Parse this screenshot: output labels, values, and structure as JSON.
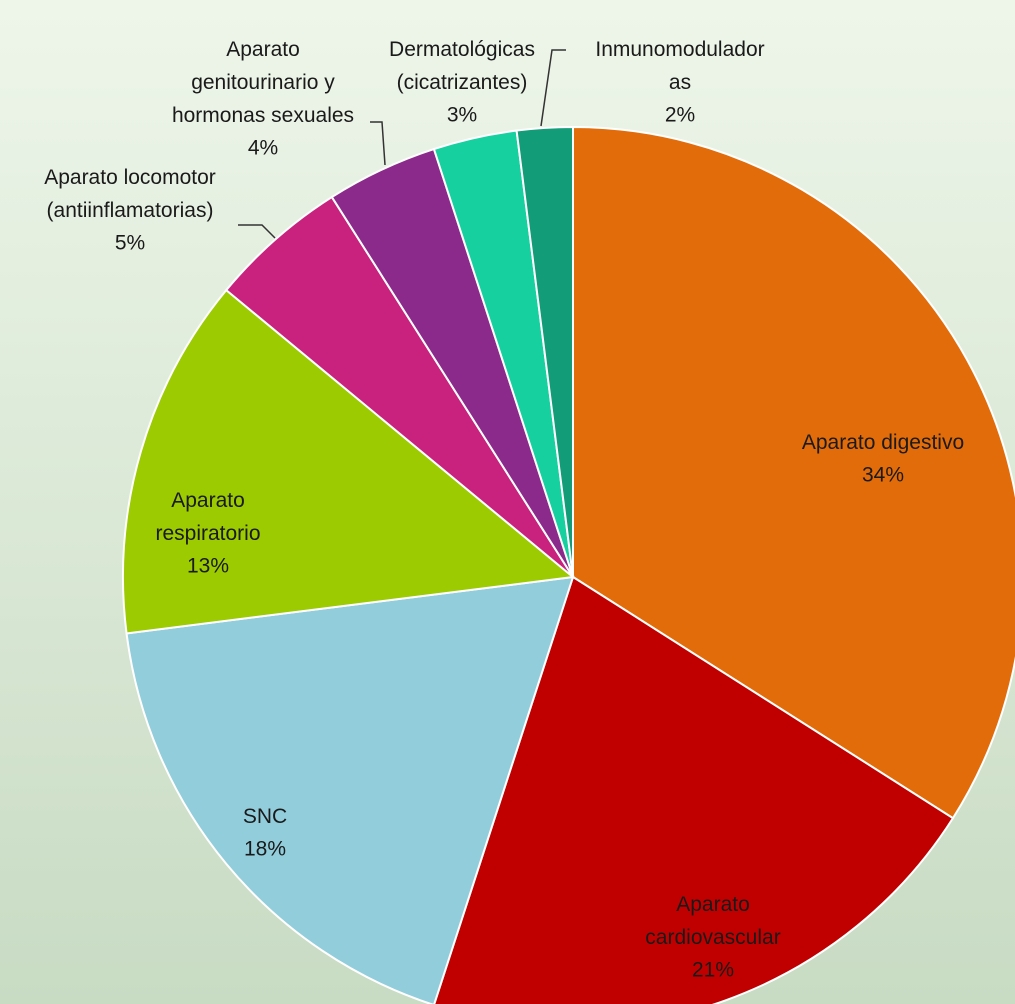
{
  "chart_data": {
    "type": "pie",
    "categories": [
      "Aparato digestivo",
      "Aparato\ncardiovascular",
      "SNC",
      "Aparato\nrespiratorio",
      "Aparato locomotor\n(antiinflamatorias)",
      "Aparato\ngenitourinario y\nhormonas sexuales",
      "Dermatológicas\n(cicatrizantes)",
      "Inmunomodulador\nas"
    ],
    "values": [
      34,
      21,
      18,
      13,
      5,
      4,
      3,
      2
    ],
    "value_labels": [
      "34%",
      "21%",
      "18%",
      "13%",
      "5%",
      "4%",
      "3%",
      "2%"
    ],
    "colors": [
      "#e36c0a",
      "#c00000",
      "#92cddc",
      "#9bcb00",
      "#c9217e",
      "#8b2a8b",
      "#17d0a0",
      "#139c78"
    ]
  }
}
